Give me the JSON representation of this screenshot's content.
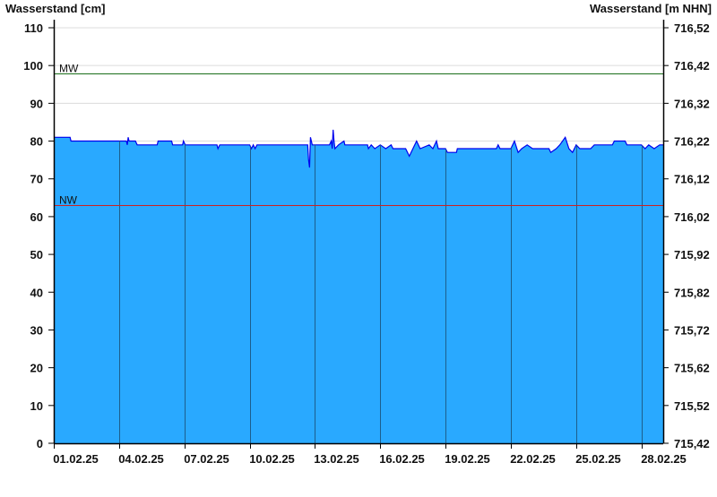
{
  "chart_data": {
    "type": "area",
    "ylabel": "Wasserstand [cm]",
    "ylabel_right": "Wasserstand [m NHN]",
    "ylim": [
      0,
      110
    ],
    "yticks": [
      0,
      10,
      20,
      30,
      40,
      50,
      60,
      70,
      80,
      90,
      100,
      110
    ],
    "yticks_right": [
      "715,42",
      "715,52",
      "715,62",
      "715,72",
      "715,82",
      "715,92",
      "716,02",
      "716,12",
      "716,22",
      "716,32",
      "716,42",
      "716,52"
    ],
    "xlim": [
      "2025-02-01T00:00",
      "2025-03-01T00:00"
    ],
    "xticks": [
      {
        "date": "2025-02-01T00:00",
        "label": "01.02.25"
      },
      {
        "date": "2025-02-04T00:00",
        "label": "04.02.25"
      },
      {
        "date": "2025-02-07T00:00",
        "label": "07.02.25"
      },
      {
        "date": "2025-02-10T00:00",
        "label": "10.02.25"
      },
      {
        "date": "2025-02-13T00:00",
        "label": "13.02.25"
      },
      {
        "date": "2025-02-16T00:00",
        "label": "16.02.25"
      },
      {
        "date": "2025-02-19T00:00",
        "label": "19.02.25"
      },
      {
        "date": "2025-02-22T00:00",
        "label": "22.02.25"
      },
      {
        "date": "2025-02-25T00:00",
        "label": "25.02.25"
      },
      {
        "date": "2025-02-28T00:00",
        "label": "28.02.25"
      }
    ],
    "grid": "horizontal",
    "reference_lines": [
      {
        "label": "MW",
        "value": 98,
        "color": "#1a6e1a"
      },
      {
        "label": "NW",
        "value": 63,
        "color": "#cc2222"
      }
    ],
    "colors": {
      "fill": "#29a9ff",
      "line": "#0000ee",
      "vgrid": "#1d5e8c",
      "hgrid": "#dcdcdc"
    },
    "series": [
      {
        "points": [
          [
            "2025-02-01T00:00",
            81
          ],
          [
            "2025-02-01T18:00",
            81
          ],
          [
            "2025-02-01T19:00",
            80
          ],
          [
            "2025-02-04T08:00",
            80
          ],
          [
            "2025-02-04T09:00",
            79
          ],
          [
            "2025-02-04T10:00",
            81
          ],
          [
            "2025-02-04T11:00",
            80
          ],
          [
            "2025-02-04T18:00",
            80
          ],
          [
            "2025-02-04T20:00",
            79
          ],
          [
            "2025-02-05T18:00",
            79
          ],
          [
            "2025-02-05T19:00",
            80
          ],
          [
            "2025-02-06T10:00",
            80
          ],
          [
            "2025-02-06T11:00",
            79
          ],
          [
            "2025-02-06T22:00",
            79
          ],
          [
            "2025-02-06T23:00",
            80
          ],
          [
            "2025-02-07T01:00",
            79
          ],
          [
            "2025-02-08T12:00",
            79
          ],
          [
            "2025-02-08T13:00",
            78
          ],
          [
            "2025-02-08T15:00",
            79
          ],
          [
            "2025-02-10T00:00",
            79
          ],
          [
            "2025-02-10T02:00",
            78
          ],
          [
            "2025-02-10T04:00",
            79
          ],
          [
            "2025-02-10T06:00",
            78
          ],
          [
            "2025-02-10T08:00",
            79
          ],
          [
            "2025-02-12T16:00",
            79
          ],
          [
            "2025-02-12T17:00",
            75
          ],
          [
            "2025-02-12T18:00",
            73
          ],
          [
            "2025-02-12T19:00",
            81
          ],
          [
            "2025-02-12T21:00",
            79
          ],
          [
            "2025-02-13T16:00",
            79
          ],
          [
            "2025-02-13T18:00",
            80
          ],
          [
            "2025-02-13T19:00",
            78
          ],
          [
            "2025-02-13T20:00",
            83
          ],
          [
            "2025-02-13T21:00",
            80
          ],
          [
            "2025-02-13T22:00",
            78
          ],
          [
            "2025-02-14T02:00",
            79
          ],
          [
            "2025-02-14T08:00",
            80
          ],
          [
            "2025-02-14T09:00",
            79
          ],
          [
            "2025-02-15T10:00",
            79
          ],
          [
            "2025-02-15T11:00",
            78
          ],
          [
            "2025-02-15T14:00",
            79
          ],
          [
            "2025-02-15T18:00",
            78
          ],
          [
            "2025-02-16T00:00",
            79
          ],
          [
            "2025-02-16T06:00",
            78
          ],
          [
            "2025-02-16T12:00",
            79
          ],
          [
            "2025-02-16T14:00",
            78
          ],
          [
            "2025-02-17T04:00",
            78
          ],
          [
            "2025-02-17T08:00",
            76
          ],
          [
            "2025-02-17T12:00",
            78
          ],
          [
            "2025-02-17T16:00",
            80
          ],
          [
            "2025-02-17T20:00",
            78
          ],
          [
            "2025-02-18T06:00",
            79
          ],
          [
            "2025-02-18T10:00",
            78
          ],
          [
            "2025-02-18T14:00",
            80
          ],
          [
            "2025-02-18T16:00",
            78
          ],
          [
            "2025-02-19T00:00",
            78
          ],
          [
            "2025-02-19T02:00",
            77
          ],
          [
            "2025-02-19T12:00",
            77
          ],
          [
            "2025-02-19T13:00",
            78
          ],
          [
            "2025-02-21T08:00",
            78
          ],
          [
            "2025-02-21T10:00",
            79
          ],
          [
            "2025-02-21T12:00",
            78
          ],
          [
            "2025-02-22T00:00",
            78
          ],
          [
            "2025-02-22T04:00",
            80
          ],
          [
            "2025-02-22T08:00",
            77
          ],
          [
            "2025-02-22T12:00",
            78
          ],
          [
            "2025-02-22T18:00",
            79
          ],
          [
            "2025-02-23T00:00",
            78
          ],
          [
            "2025-02-23T18:00",
            78
          ],
          [
            "2025-02-23T20:00",
            77
          ],
          [
            "2025-02-24T02:00",
            78
          ],
          [
            "2025-02-24T06:00",
            79
          ],
          [
            "2025-02-24T12:00",
            81
          ],
          [
            "2025-02-24T16:00",
            78
          ],
          [
            "2025-02-24T20:00",
            77
          ],
          [
            "2025-02-25T00:00",
            79
          ],
          [
            "2025-02-25T04:00",
            78
          ],
          [
            "2025-02-25T16:00",
            78
          ],
          [
            "2025-02-25T20:00",
            79
          ],
          [
            "2025-02-26T16:00",
            79
          ],
          [
            "2025-02-26T18:00",
            80
          ],
          [
            "2025-02-27T06:00",
            80
          ],
          [
            "2025-02-27T08:00",
            79
          ],
          [
            "2025-02-28T00:00",
            79
          ],
          [
            "2025-02-28T04:00",
            78
          ],
          [
            "2025-02-28T08:00",
            79
          ],
          [
            "2025-02-28T14:00",
            78
          ],
          [
            "2025-02-28T20:00",
            79
          ],
          [
            "2025-03-01T00:00",
            79
          ]
        ]
      }
    ]
  }
}
